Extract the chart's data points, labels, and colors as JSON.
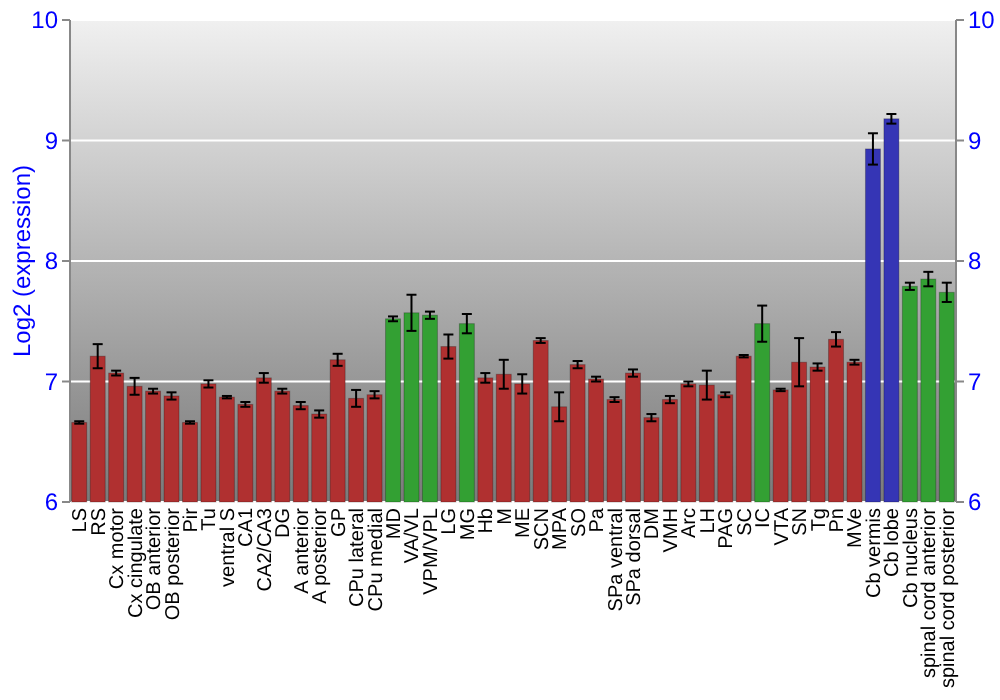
{
  "chart_data": {
    "type": "bar",
    "ylabel": "Log2 (expression)",
    "categories": [
      "LS",
      "RS",
      "Cx motor",
      "Cx cingulate",
      "OB anterior",
      "OB posterior",
      "Pir",
      "Tu",
      "ventral S",
      "CA1",
      "CA2/CA3",
      "DG",
      "A anterior",
      "A posterior",
      "GP",
      "CPu lateral",
      "CPu medial",
      "MD",
      "VA/VL",
      "VPM/VPL",
      "LG",
      "MG",
      "Hb",
      "M",
      "ME",
      "SCN",
      "MPA",
      "SO",
      "Pa",
      "SPa ventral",
      "SPa dorsal",
      "DM",
      "VMH",
      "Arc",
      "LH",
      "PAG",
      "SC",
      "IC",
      "VTA",
      "SN",
      "Tg",
      "Pn",
      "MVe",
      "Cb vermis",
      "Cb lobe",
      "Cb nucleus",
      "spinal cord anterior",
      "spinal cord posterior"
    ],
    "values": [
      6.66,
      7.21,
      7.07,
      6.96,
      6.92,
      6.88,
      6.66,
      6.98,
      6.87,
      6.81,
      7.03,
      6.92,
      6.8,
      6.73,
      7.18,
      6.86,
      6.89,
      7.52,
      7.57,
      7.55,
      7.29,
      7.48,
      7.03,
      7.06,
      6.98,
      7.34,
      6.79,
      7.14,
      7.02,
      6.85,
      7.07,
      6.7,
      6.85,
      6.98,
      6.97,
      6.89,
      7.21,
      7.48,
      6.93,
      7.16,
      7.12,
      7.35,
      7.16,
      8.93,
      9.18,
      7.79,
      7.85,
      7.74
    ],
    "errors": [
      0.01,
      0.1,
      0.02,
      0.07,
      0.02,
      0.03,
      0.01,
      0.03,
      0.01,
      0.02,
      0.04,
      0.02,
      0.03,
      0.03,
      0.05,
      0.07,
      0.03,
      0.02,
      0.15,
      0.03,
      0.1,
      0.08,
      0.04,
      0.12,
      0.08,
      0.02,
      0.12,
      0.03,
      0.02,
      0.02,
      0.03,
      0.03,
      0.03,
      0.02,
      0.12,
      0.02,
      0.01,
      0.15,
      0.01,
      0.2,
      0.03,
      0.06,
      0.02,
      0.13,
      0.04,
      0.03,
      0.06,
      0.08
    ],
    "colors": [
      "#b03030",
      "#b03030",
      "#b03030",
      "#b03030",
      "#b03030",
      "#b03030",
      "#b03030",
      "#b03030",
      "#b03030",
      "#b03030",
      "#b03030",
      "#b03030",
      "#b03030",
      "#b03030",
      "#b03030",
      "#b03030",
      "#b03030",
      "#33a033",
      "#33a033",
      "#33a033",
      "#b03030",
      "#33a033",
      "#b03030",
      "#b03030",
      "#b03030",
      "#b03030",
      "#b03030",
      "#b03030",
      "#b03030",
      "#b03030",
      "#b03030",
      "#b03030",
      "#b03030",
      "#b03030",
      "#b03030",
      "#b03030",
      "#b03030",
      "#33a033",
      "#b03030",
      "#b03030",
      "#b03030",
      "#b03030",
      "#b03030",
      "#3535b5",
      "#3535b5",
      "#33a033",
      "#33a033",
      "#33a033"
    ],
    "ylim": [
      6,
      10
    ],
    "yticks": [
      6,
      7,
      8,
      9,
      10
    ],
    "y2lim": [
      6,
      10
    ],
    "y2ticks": [
      6,
      7,
      8,
      9,
      10
    ],
    "grid": "y"
  }
}
